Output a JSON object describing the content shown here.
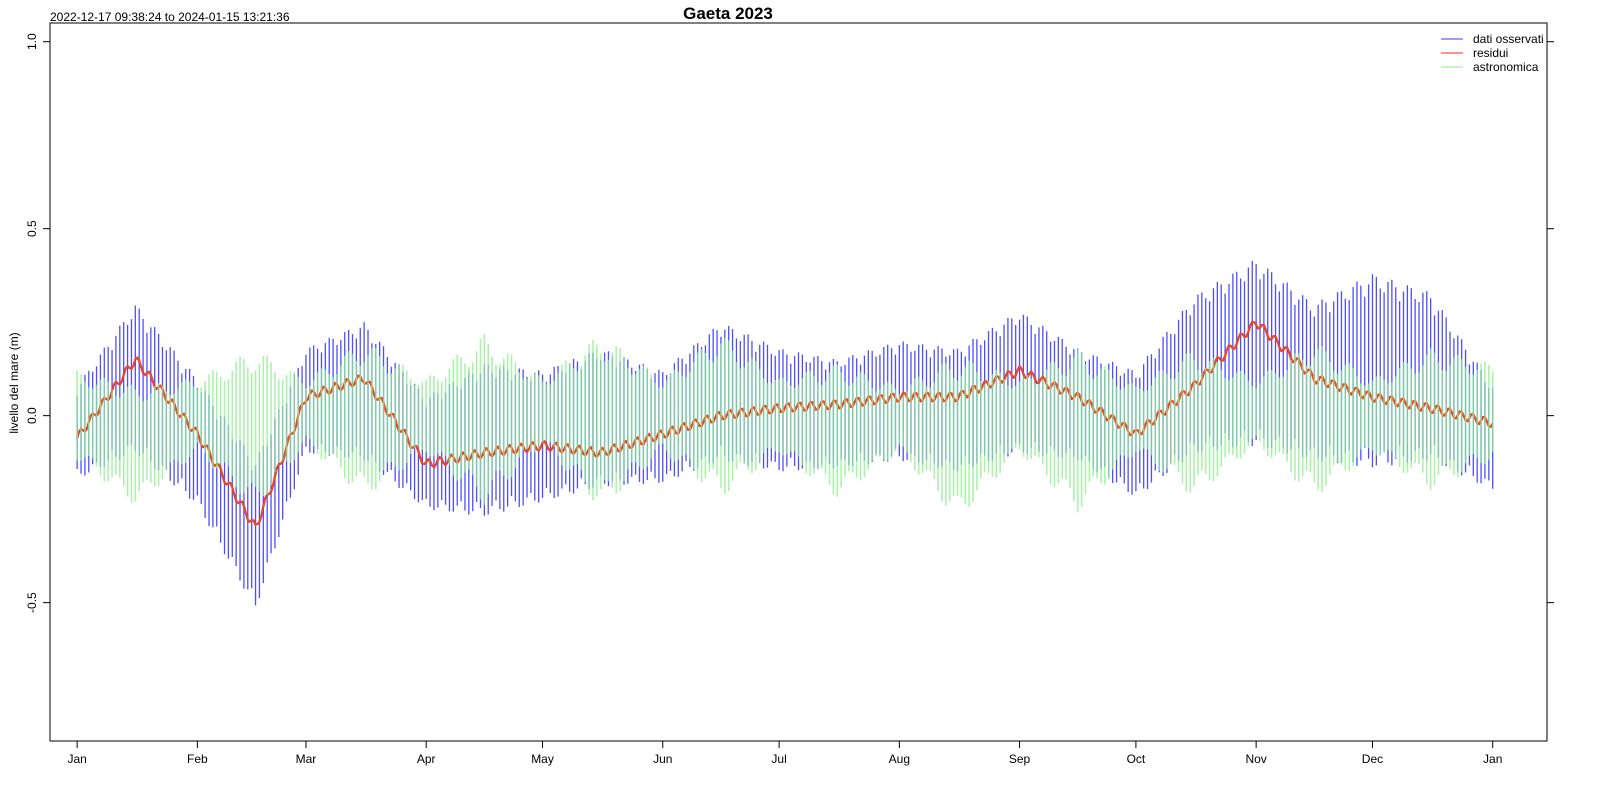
{
  "chart_data": {
    "type": "line",
    "title": "Gaeta 2023",
    "subtitle": "2022-12-17 09:38:24 to 2024-01-15 13:21:36",
    "xlabel": "",
    "ylabel": "livello del mare (m)",
    "xlim": [
      "2022-12-25",
      "2024-01-15"
    ],
    "ylim": [
      -0.87,
      1.05
    ],
    "y_ticks": [
      -0.5,
      0.0,
      0.5,
      1.0
    ],
    "y_tick_labels": [
      "-0.5",
      "0.0",
      "0.5",
      "1.0"
    ],
    "x_ticks": [
      "2023-01-01",
      "2023-02-01",
      "2023-03-01",
      "2023-04-01",
      "2023-05-01",
      "2023-06-01",
      "2023-07-01",
      "2023-08-01",
      "2023-09-01",
      "2023-10-01",
      "2023-11-01",
      "2023-12-01",
      "2024-01-01"
    ],
    "x_tick_labels": [
      "Jan",
      "Feb",
      "Mar",
      "Apr",
      "May",
      "Jun",
      "Jul",
      "Aug",
      "Sep",
      "Oct",
      "Nov",
      "Dec",
      "Jan"
    ],
    "grid": false,
    "legend_position": "top-right",
    "series": [
      {
        "name": "dati osservati",
        "color": "#3b3bff",
        "style": "daily range (min-max)",
        "x": [
          "2023-01-01",
          "2023-01-16",
          "2023-02-01",
          "2023-02-16",
          "2023-03-01",
          "2023-03-16",
          "2023-04-01",
          "2023-04-16",
          "2023-05-01",
          "2023-05-16",
          "2023-06-01",
          "2023-06-16",
          "2023-07-01",
          "2023-07-16",
          "2023-08-01",
          "2023-08-16",
          "2023-09-01",
          "2023-09-16",
          "2023-10-01",
          "2023-10-16",
          "2023-11-01",
          "2023-11-16",
          "2023-12-01",
          "2023-12-16",
          "2024-01-01"
        ],
        "min": [
          -0.17,
          -0.1,
          -0.24,
          -0.52,
          -0.1,
          -0.12,
          -0.25,
          -0.27,
          -0.23,
          -0.19,
          -0.18,
          -0.12,
          -0.15,
          -0.14,
          -0.12,
          -0.15,
          -0.1,
          -0.12,
          -0.22,
          -0.1,
          -0.08,
          -0.12,
          -0.14,
          -0.12,
          -0.2
        ],
        "max": [
          0.08,
          0.3,
          0.1,
          -0.12,
          0.18,
          0.25,
          0.05,
          0.14,
          0.12,
          0.18,
          0.12,
          0.25,
          0.18,
          0.15,
          0.2,
          0.18,
          0.28,
          0.18,
          0.12,
          0.32,
          0.42,
          0.3,
          0.38,
          0.33,
          0.08
        ]
      },
      {
        "name": "residui",
        "color": "#ff2020",
        "style": "line",
        "x": [
          "2023-01-01",
          "2023-01-16",
          "2023-02-01",
          "2023-02-16",
          "2023-03-01",
          "2023-03-16",
          "2023-04-01",
          "2023-04-16",
          "2023-05-01",
          "2023-05-16",
          "2023-06-01",
          "2023-06-16",
          "2023-07-01",
          "2023-07-16",
          "2023-08-01",
          "2023-08-16",
          "2023-09-01",
          "2023-09-16",
          "2023-10-01",
          "2023-10-16",
          "2023-11-01",
          "2023-11-16",
          "2023-12-01",
          "2023-12-16",
          "2024-01-01"
        ],
        "values": [
          -0.06,
          0.15,
          -0.05,
          -0.3,
          0.05,
          0.1,
          -0.13,
          -0.1,
          -0.08,
          -0.1,
          -0.05,
          0.0,
          0.02,
          0.03,
          0.05,
          0.05,
          0.12,
          0.05,
          -0.05,
          0.08,
          0.25,
          0.1,
          0.05,
          0.02,
          -0.02
        ]
      },
      {
        "name": "astronomica",
        "color": "#90ee90",
        "style": "daily range (min-max)",
        "x": [
          "2023-01-01",
          "2023-01-16",
          "2023-02-01",
          "2023-02-16",
          "2023-03-01",
          "2023-03-16",
          "2023-04-01",
          "2023-04-16",
          "2023-05-01",
          "2023-05-16",
          "2023-06-01",
          "2023-06-16",
          "2023-07-01",
          "2023-07-16",
          "2023-08-01",
          "2023-08-16",
          "2023-09-01",
          "2023-09-16",
          "2023-10-01",
          "2023-10-16",
          "2023-11-01",
          "2023-11-16",
          "2023-12-01",
          "2023-12-16",
          "2024-01-01"
        ],
        "min": [
          -0.12,
          -0.24,
          -0.1,
          -0.25,
          -0.08,
          -0.22,
          -0.1,
          -0.24,
          -0.08,
          -0.25,
          -0.1,
          -0.22,
          -0.1,
          -0.22,
          -0.1,
          -0.28,
          -0.1,
          -0.26,
          -0.1,
          -0.22,
          -0.08,
          -0.22,
          -0.1,
          -0.2,
          -0.12
        ],
        "max": [
          0.12,
          0.08,
          0.1,
          0.18,
          0.1,
          0.2,
          0.1,
          0.22,
          0.1,
          0.22,
          0.1,
          0.22,
          0.1,
          0.14,
          0.08,
          0.16,
          0.1,
          0.18,
          0.08,
          0.18,
          0.1,
          0.2,
          0.1,
          0.18,
          0.14
        ]
      }
    ]
  }
}
